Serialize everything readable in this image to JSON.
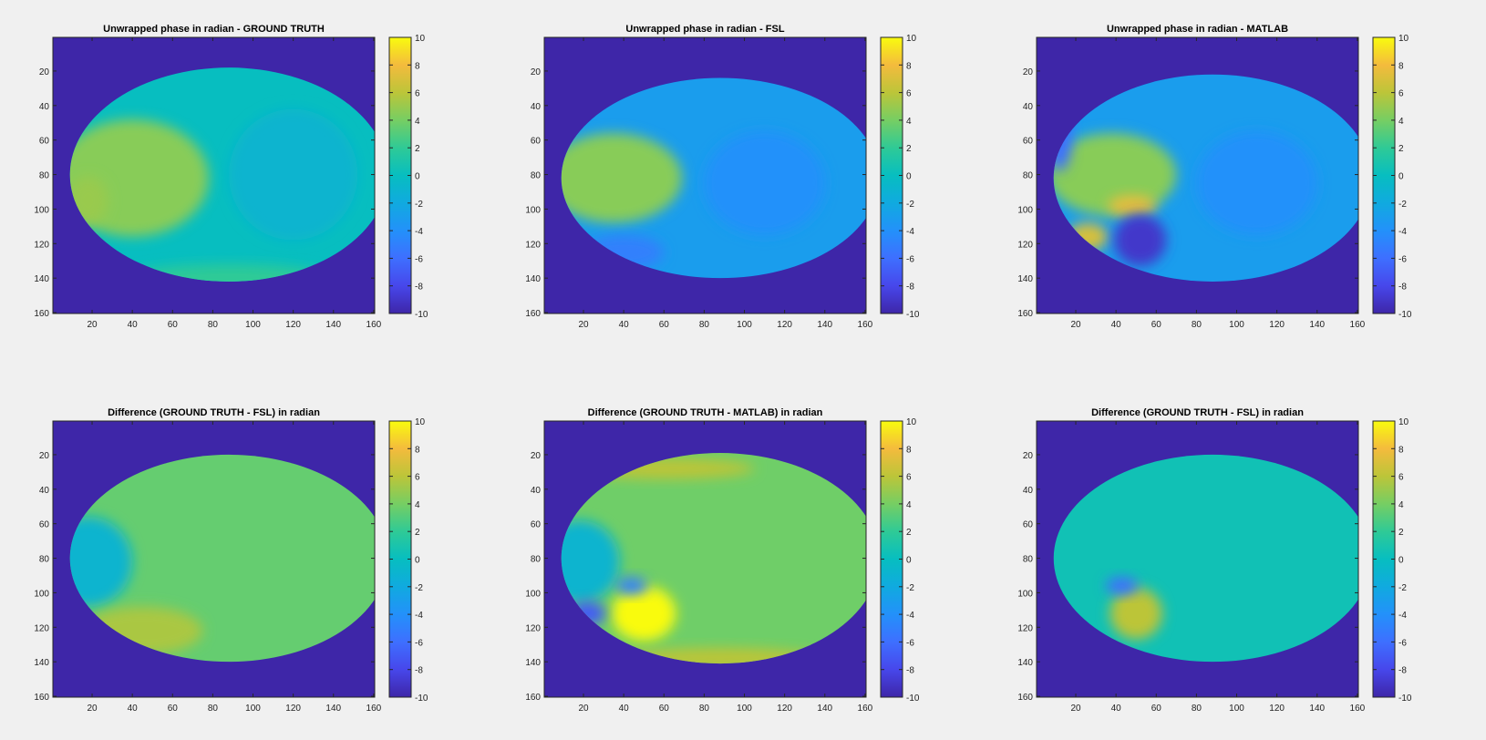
{
  "chart_data": [
    {
      "type": "heatmap",
      "title": "Unwrapped phase in radian - GROUND TRUTH",
      "xlim": [
        1,
        160
      ],
      "ylim": [
        1,
        160
      ],
      "y_direction": "reversed",
      "xticks": [
        "20",
        "40",
        "60",
        "80",
        "100",
        "120",
        "140",
        "160"
      ],
      "yticks": [
        "20",
        "40",
        "60",
        "80",
        "100",
        "120",
        "140",
        "160"
      ],
      "colorbar": {
        "clim": [
          -10,
          10
        ],
        "ticks": [
          "10",
          "8",
          "6",
          "4",
          "2",
          "0",
          "-2",
          "-4",
          "-6",
          "-8",
          "-10"
        ],
        "colormap": "parula"
      },
      "background_value": -10,
      "brain_mask": {
        "cx": 88,
        "cy": 80,
        "rx": 79,
        "ry": 62
      },
      "base_value": 0,
      "features": [
        {
          "cx": 40,
          "cy": 82,
          "rx": 38,
          "ry": 34,
          "value": 4.5
        },
        {
          "cx": 18,
          "cy": 95,
          "rx": 10,
          "ry": 14,
          "value": 5
        },
        {
          "cx": 120,
          "cy": 80,
          "rx": 32,
          "ry": 38,
          "value": -1
        },
        {
          "cx": 88,
          "cy": 140,
          "rx": 50,
          "ry": 8,
          "value": 2
        }
      ]
    },
    {
      "type": "heatmap",
      "title": "Unwrapped phase in radian - FSL",
      "xlim": [
        1,
        160
      ],
      "ylim": [
        1,
        160
      ],
      "y_direction": "reversed",
      "xticks": [
        "20",
        "40",
        "60",
        "80",
        "100",
        "120",
        "140",
        "160"
      ],
      "yticks": [
        "20",
        "40",
        "60",
        "80",
        "100",
        "120",
        "140",
        "160"
      ],
      "colorbar": {
        "clim": [
          -10,
          10
        ],
        "ticks": [
          "10",
          "8",
          "6",
          "4",
          "2",
          "0",
          "-2",
          "-4",
          "-6",
          "-8",
          "-10"
        ],
        "colormap": "parula"
      },
      "background_value": -10,
      "brain_mask": {
        "cx": 88,
        "cy": 82,
        "rx": 79,
        "ry": 58
      },
      "base_value": -3,
      "features": [
        {
          "cx": 35,
          "cy": 82,
          "rx": 34,
          "ry": 26,
          "value": 4.5
        },
        {
          "cx": 110,
          "cy": 85,
          "rx": 30,
          "ry": 30,
          "value": -4
        },
        {
          "cx": 40,
          "cy": 125,
          "rx": 20,
          "ry": 10,
          "value": -5
        }
      ]
    },
    {
      "type": "heatmap",
      "title": "Unwrapped phase in radian - MATLAB",
      "xlim": [
        1,
        160
      ],
      "ylim": [
        1,
        160
      ],
      "y_direction": "reversed",
      "xticks": [
        "20",
        "40",
        "60",
        "80",
        "100",
        "120",
        "140",
        "160"
      ],
      "yticks": [
        "20",
        "40",
        "60",
        "80",
        "100",
        "120",
        "140",
        "160"
      ],
      "colorbar": {
        "clim": [
          -10,
          10
        ],
        "ticks": [
          "10",
          "8",
          "6",
          "4",
          "2",
          "0",
          "-2",
          "-4",
          "-6",
          "-8",
          "-10"
        ],
        "colormap": "parula"
      },
      "background_value": -10,
      "brain_mask": {
        "cx": 88,
        "cy": 82,
        "rx": 79,
        "ry": 60
      },
      "base_value": -3,
      "features": [
        {
          "cx": 38,
          "cy": 80,
          "rx": 32,
          "ry": 24,
          "value": 4.5
        },
        {
          "cx": 110,
          "cy": 85,
          "rx": 30,
          "ry": 30,
          "value": -4
        },
        {
          "cx": 48,
          "cy": 98,
          "rx": 12,
          "ry": 6,
          "value": 7.5
        },
        {
          "cx": 26,
          "cy": 116,
          "rx": 10,
          "ry": 8,
          "value": 7
        },
        {
          "cx": 52,
          "cy": 118,
          "rx": 13,
          "ry": 15,
          "value": -9
        },
        {
          "cx": 12,
          "cy": 58,
          "rx": 6,
          "ry": 20,
          "value": -6
        }
      ]
    },
    {
      "type": "heatmap",
      "title": "Difference (GROUND TRUTH - FSL) in radian",
      "xlim": [
        1,
        160
      ],
      "ylim": [
        1,
        160
      ],
      "y_direction": "reversed",
      "xticks": [
        "20",
        "40",
        "60",
        "80",
        "100",
        "120",
        "140",
        "160"
      ],
      "yticks": [
        "20",
        "40",
        "60",
        "80",
        "100",
        "120",
        "140",
        "160"
      ],
      "colorbar": {
        "clim": [
          -10,
          10
        ],
        "ticks": [
          "10",
          "8",
          "6",
          "4",
          "2",
          "0",
          "-2",
          "-4",
          "-6",
          "-8",
          "-10"
        ],
        "colormap": "parula"
      },
      "background_value": -10,
      "brain_mask": {
        "cx": 88,
        "cy": 80,
        "rx": 79,
        "ry": 60
      },
      "base_value": 3.5,
      "features": [
        {
          "cx": 18,
          "cy": 82,
          "rx": 22,
          "ry": 26,
          "value": -1
        },
        {
          "cx": 45,
          "cy": 122,
          "rx": 30,
          "ry": 14,
          "value": 5.5
        }
      ]
    },
    {
      "type": "heatmap",
      "title": "Difference (GROUND TRUTH - MATLAB) in radian",
      "xlim": [
        1,
        160
      ],
      "ylim": [
        1,
        160
      ],
      "y_direction": "reversed",
      "xticks": [
        "20",
        "40",
        "60",
        "80",
        "100",
        "120",
        "140",
        "160"
      ],
      "yticks": [
        "20",
        "40",
        "60",
        "80",
        "100",
        "120",
        "140",
        "160"
      ],
      "colorbar": {
        "clim": [
          -10,
          10
        ],
        "ticks": [
          "10",
          "8",
          "6",
          "4",
          "2",
          "0",
          "-2",
          "-4",
          "-6",
          "-8",
          "-10"
        ],
        "colormap": "parula"
      },
      "background_value": -10,
      "brain_mask": {
        "cx": 88,
        "cy": 80,
        "rx": 79,
        "ry": 61
      },
      "base_value": 3.8,
      "features": [
        {
          "cx": 18,
          "cy": 82,
          "rx": 20,
          "ry": 24,
          "value": -1
        },
        {
          "cx": 50,
          "cy": 112,
          "rx": 16,
          "ry": 16,
          "value": 10
        },
        {
          "cx": 44,
          "cy": 96,
          "rx": 8,
          "ry": 5,
          "value": -5
        },
        {
          "cx": 22,
          "cy": 112,
          "rx": 9,
          "ry": 7,
          "value": -7
        },
        {
          "cx": 88,
          "cy": 138,
          "rx": 50,
          "ry": 6,
          "value": 6
        },
        {
          "cx": 60,
          "cy": 28,
          "rx": 45,
          "ry": 6,
          "value": 6
        }
      ]
    },
    {
      "type": "heatmap",
      "title": "Difference (GROUND TRUTH - FSL) in radian",
      "xlim": [
        1,
        160
      ],
      "ylim": [
        1,
        160
      ],
      "y_direction": "reversed",
      "xticks": [
        "20",
        "40",
        "60",
        "80",
        "100",
        "120",
        "140",
        "160"
      ],
      "yticks": [
        "20",
        "40",
        "60",
        "80",
        "100",
        "120",
        "140",
        "160"
      ],
      "colorbar": {
        "clim": [
          -10,
          10
        ],
        "ticks": [
          "10",
          "8",
          "6",
          "4",
          "2",
          "0",
          "-2",
          "-4",
          "-6",
          "-8",
          "-10"
        ],
        "colormap": "parula"
      },
      "background_value": -10,
      "brain_mask": {
        "cx": 88,
        "cy": 80,
        "rx": 79,
        "ry": 60
      },
      "base_value": 0.5,
      "features": [
        {
          "cx": 50,
          "cy": 112,
          "rx": 13,
          "ry": 15,
          "value": 6
        },
        {
          "cx": 43,
          "cy": 96,
          "rx": 8,
          "ry": 5,
          "value": -6
        }
      ]
    }
  ]
}
